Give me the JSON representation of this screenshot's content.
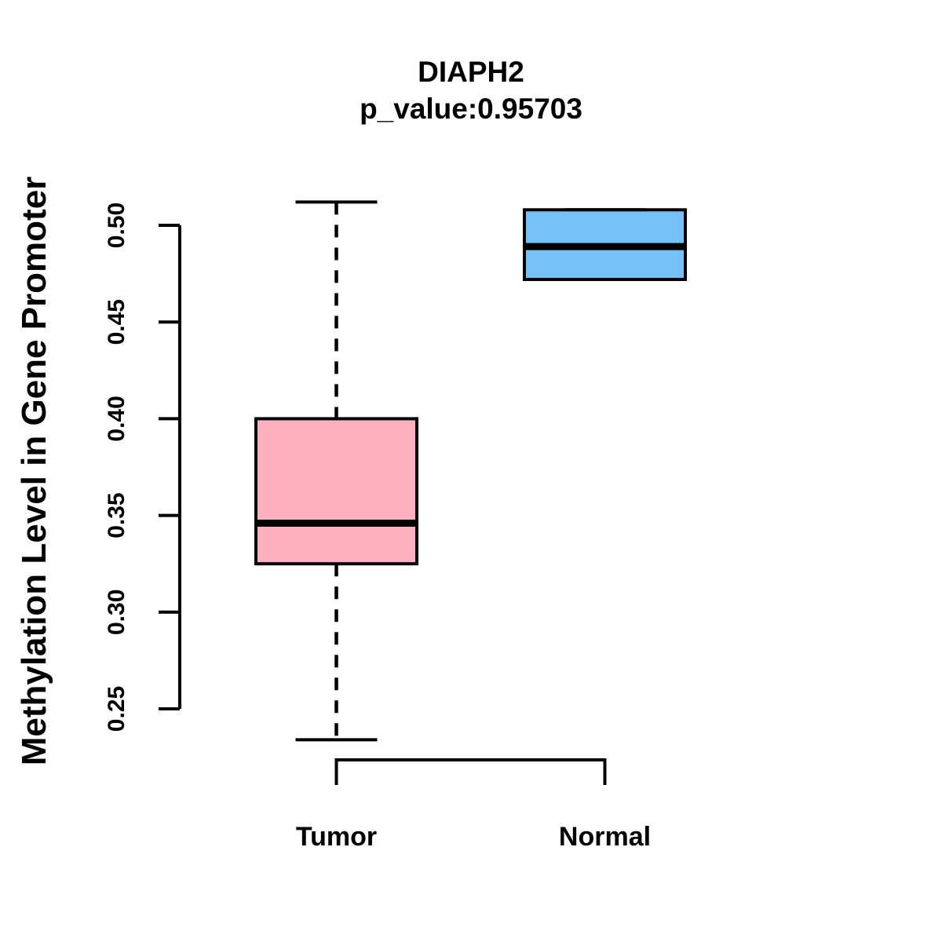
{
  "chart_data": {
    "type": "boxplot",
    "title": "DIAPH2",
    "subtitle": "p_value:0.95703",
    "ylabel": "Methylation Level in Gene Promoter",
    "xlabel": "",
    "categories": [
      "Tumor",
      "Normal"
    ],
    "yticks": [
      0.25,
      0.3,
      0.35,
      0.4,
      0.45,
      0.5
    ],
    "ytick_labels": [
      "0.25",
      "0.30",
      "0.35",
      "0.40",
      "0.45",
      "0.50"
    ],
    "ylim": [
      0.234,
      0.512
    ],
    "grid": false,
    "legend_position": "none",
    "series": [
      {
        "name": "Tumor",
        "color": "#FFB0C0",
        "whisker_low": 0.234,
        "q1": 0.325,
        "median": 0.346,
        "q3": 0.4,
        "whisker_high": 0.512,
        "whisker_style": "dashed",
        "outliers": []
      },
      {
        "name": "Normal",
        "color": "#75C0F7",
        "whisker_low": 0.472,
        "q1": 0.472,
        "median": 0.489,
        "q3": 0.508,
        "whisker_high": 0.508,
        "whisker_style": "dashed",
        "outliers": []
      }
    ]
  },
  "colors": {
    "stroke": "#000000",
    "background": "#FFFFFF"
  }
}
